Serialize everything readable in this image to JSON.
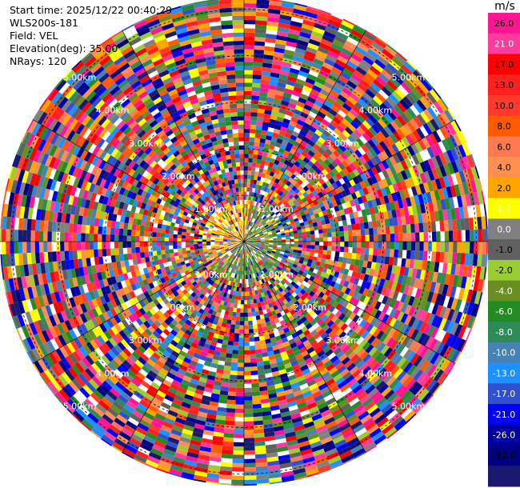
{
  "header": {
    "start_time": "Start time: 2025/12/22 00:40:29",
    "station": "WLS200s-181",
    "field": "Field: VEL",
    "elevation": "Elevation(deg): 35.00",
    "nrays": "NRays: 120"
  },
  "chart_data": {
    "type": "heatmap",
    "subtype": "ppi-polar",
    "field": "VEL",
    "unit": "m/s",
    "nrays": 120,
    "max_range_km": 5.25,
    "range_ring_labels": [
      "1.00km",
      "2.00km",
      "3.00km",
      "4.00km",
      "5.00km"
    ],
    "range_rings_km": [
      1,
      2,
      3,
      4,
      5
    ],
    "colorbar": {
      "title": "m/s",
      "ticks": [
        "26.0",
        "21.0",
        "17.0",
        "13.0",
        "10.0",
        "8.0",
        "6.0",
        "4.0",
        "2.0",
        "1.0",
        "0.0",
        "-1.0",
        "-2.0",
        "-4.0",
        "-6.0",
        "-8.0",
        "-10.0",
        "-13.0",
        "-17.0",
        "-21.0",
        "-26.0",
        "-30.0"
      ],
      "colors": [
        "#ff1493",
        "#ff3c9b",
        "#ff0000",
        "#ff2020",
        "#ff3a2a",
        "#ff5a00",
        "#ff7a50",
        "#ff9050",
        "#ffa500",
        "#ffff00",
        "#808080",
        "#606060",
        "#9acd32",
        "#6b8e23",
        "#228b22",
        "#2e8b57",
        "#4682b4",
        "#1e90ff",
        "#3050d0",
        "#0000ff",
        "#0000a0",
        "#000080",
        "#191970"
      ]
    },
    "near_field": {
      "radius_km": 0.85,
      "positive_colors": [
        "#ffa500",
        "#ffd700",
        "#ffff00",
        "#ff9050",
        "#ffffff"
      ],
      "negative_colors": [
        "#9acd32",
        "#6b8e23",
        "#808080",
        "#2e8b57",
        "#ffffff"
      ]
    }
  }
}
